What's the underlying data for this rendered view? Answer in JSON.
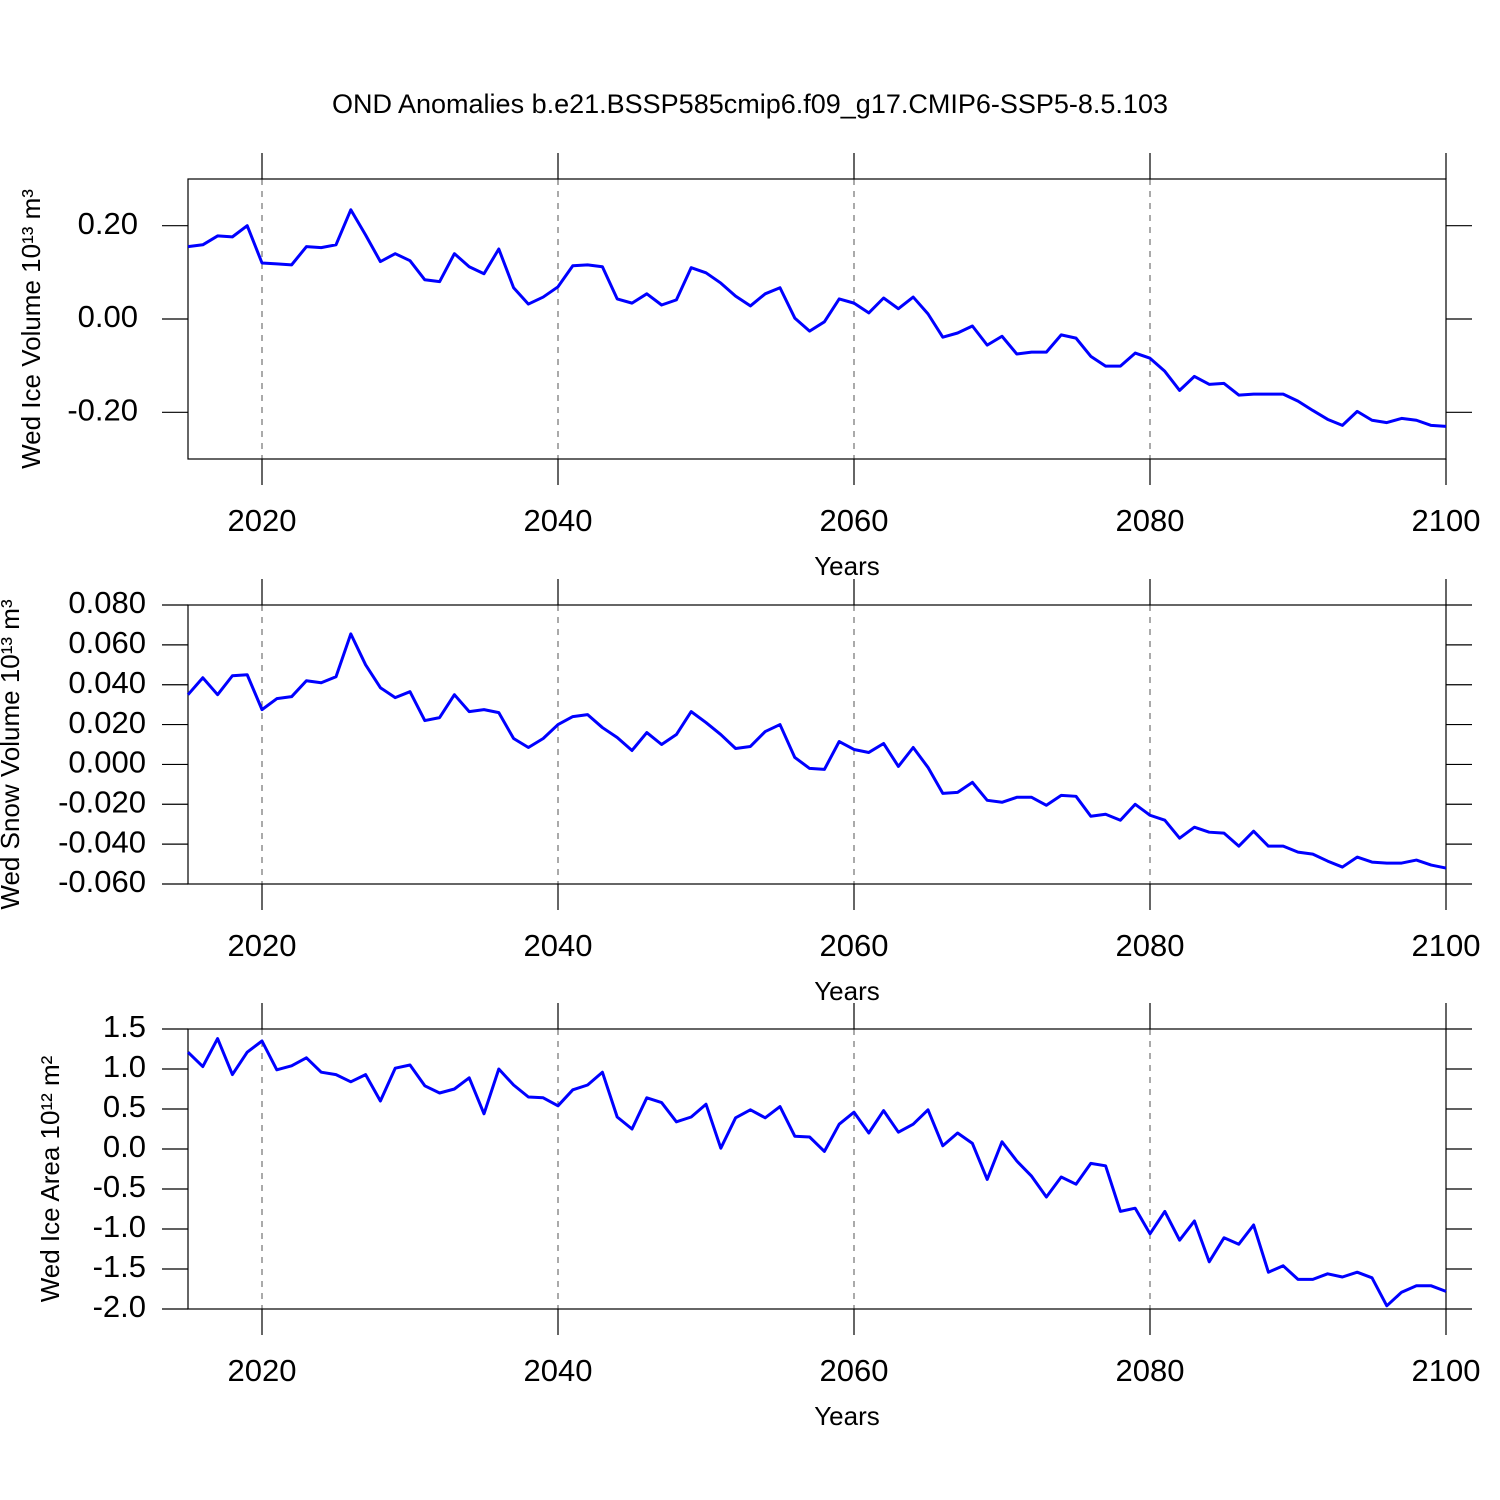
{
  "title": "OND Anomalies b.e21.BSSP585cmip6.f09_g17.CMIP6-SSP5-8.5.103",
  "chart_data": [
    {
      "type": "line",
      "ylabel": "Wed Ice Volume 10¹³ m³",
      "xlabel": "Years",
      "color": "#0000ff",
      "grid": true,
      "xlim": [
        2015,
        2100
      ],
      "xticks": [
        2020,
        2040,
        2060,
        2080,
        2100
      ],
      "ylim": [
        -0.3,
        0.3
      ],
      "yticks": [
        {
          "value": -0.2,
          "label": "-0.20"
        },
        {
          "value": 0,
          "label": "0.00"
        },
        {
          "value": 0.2,
          "label": "0.20"
        }
      ],
      "x": [
        2015,
        2016,
        2017,
        2018,
        2019,
        2020,
        2021,
        2022,
        2023,
        2024,
        2025,
        2026,
        2027,
        2028,
        2029,
        2030,
        2031,
        2032,
        2033,
        2034,
        2035,
        2036,
        2037,
        2038,
        2039,
        2040,
        2041,
        2042,
        2043,
        2044,
        2045,
        2046,
        2047,
        2048,
        2049,
        2050,
        2051,
        2052,
        2053,
        2054,
        2055,
        2056,
        2057,
        2058,
        2059,
        2060,
        2061,
        2062,
        2063,
        2064,
        2065,
        2066,
        2067,
        2068,
        2069,
        2070,
        2071,
        2072,
        2073,
        2074,
        2075,
        2076,
        2077,
        2078,
        2079,
        2080,
        2081,
        2082,
        2083,
        2084,
        2085,
        2086,
        2087,
        2088,
        2089,
        2090,
        2091,
        2092,
        2093,
        2094,
        2095,
        2096,
        2097,
        2098,
        2099,
        2100
      ],
      "values": [
        0.155,
        0.159,
        0.178,
        0.176,
        0.2,
        0.12,
        0.118,
        0.116,
        0.155,
        0.153,
        0.159,
        0.234,
        0.18,
        0.123,
        0.14,
        0.125,
        0.084,
        0.08,
        0.14,
        0.112,
        0.097,
        0.15,
        0.067,
        0.032,
        0.047,
        0.069,
        0.114,
        0.116,
        0.112,
        0.043,
        0.034,
        0.054,
        0.03,
        0.041,
        0.11,
        0.099,
        0.077,
        0.049,
        0.028,
        0.054,
        0.067,
        0.002,
        -0.026,
        -0.006,
        0.043,
        0.034,
        0.013,
        0.045,
        0.022,
        0.047,
        0.011,
        -0.039,
        -0.03,
        -0.015,
        -0.056,
        -0.037,
        -0.075,
        -0.071,
        -0.071,
        -0.034,
        -0.041,
        -0.08,
        -0.101,
        -0.101,
        -0.073,
        -0.084,
        -0.112,
        -0.153,
        -0.123,
        -0.14,
        -0.138,
        -0.163,
        -0.161,
        -0.161,
        -0.161,
        -0.176,
        -0.196,
        -0.215,
        -0.228,
        -0.198,
        -0.217,
        -0.222,
        -0.213,
        -0.217,
        -0.228,
        -0.23
      ]
    },
    {
      "type": "line",
      "ylabel": "Wed Snow Volume 10¹³ m³",
      "xlabel": "Years",
      "color": "#0000ff",
      "grid": true,
      "xlim": [
        2015,
        2100
      ],
      "xticks": [
        2020,
        2040,
        2060,
        2080,
        2100
      ],
      "ylim": [
        -0.06,
        0.08
      ],
      "yticks": [
        {
          "value": -0.06,
          "label": "-0.060"
        },
        {
          "value": -0.04,
          "label": "-0.040"
        },
        {
          "value": -0.02,
          "label": "-0.020"
        },
        {
          "value": 0,
          "label": "0.000"
        },
        {
          "value": 0.02,
          "label": "0.020"
        },
        {
          "value": 0.04,
          "label": "0.040"
        },
        {
          "value": 0.06,
          "label": "0.060"
        },
        {
          "value": 0.08,
          "label": "0.080"
        }
      ],
      "x": [
        2015,
        2016,
        2017,
        2018,
        2019,
        2020,
        2021,
        2022,
        2023,
        2024,
        2025,
        2026,
        2027,
        2028,
        2029,
        2030,
        2031,
        2032,
        2033,
        2034,
        2035,
        2036,
        2037,
        2038,
        2039,
        2040,
        2041,
        2042,
        2043,
        2044,
        2045,
        2046,
        2047,
        2048,
        2049,
        2050,
        2051,
        2052,
        2053,
        2054,
        2055,
        2056,
        2057,
        2058,
        2059,
        2060,
        2061,
        2062,
        2063,
        2064,
        2065,
        2066,
        2067,
        2068,
        2069,
        2070,
        2071,
        2072,
        2073,
        2074,
        2075,
        2076,
        2077,
        2078,
        2079,
        2080,
        2081,
        2082,
        2083,
        2084,
        2085,
        2086,
        2087,
        2088,
        2089,
        2090,
        2091,
        2092,
        2093,
        2094,
        2095,
        2096,
        2097,
        2098,
        2099,
        2100
      ],
      "values": [
        0.035,
        0.0435,
        0.035,
        0.0445,
        0.045,
        0.0275,
        0.033,
        0.034,
        0.042,
        0.041,
        0.044,
        0.0655,
        0.05,
        0.0385,
        0.0335,
        0.0365,
        0.022,
        0.0235,
        0.035,
        0.0265,
        0.0275,
        0.026,
        0.013,
        0.0085,
        0.013,
        0.02,
        0.024,
        0.025,
        0.0185,
        0.0135,
        0.007,
        0.016,
        0.01,
        0.015,
        0.0265,
        0.021,
        0.015,
        0.008,
        0.009,
        0.0165,
        0.02,
        0.0035,
        -0.002,
        -0.0025,
        0.0115,
        0.0075,
        0.006,
        0.0105,
        -0.001,
        0.0085,
        -0.0015,
        -0.0145,
        -0.014,
        -0.009,
        -0.018,
        -0.019,
        -0.0165,
        -0.0165,
        -0.0205,
        -0.0155,
        -0.016,
        -0.026,
        -0.025,
        -0.028,
        -0.02,
        -0.0255,
        -0.028,
        -0.037,
        -0.0315,
        -0.034,
        -0.0345,
        -0.041,
        -0.0335,
        -0.041,
        -0.041,
        -0.044,
        -0.045,
        -0.0485,
        -0.0515,
        -0.0465,
        -0.049,
        -0.0495,
        -0.0495,
        -0.048,
        -0.0505,
        -0.052
      ]
    },
    {
      "type": "line",
      "ylabel": "Wed Ice Area 10¹² m²",
      "xlabel": "Years",
      "color": "#0000ff",
      "grid": true,
      "xlim": [
        2015,
        2100
      ],
      "xticks": [
        2020,
        2040,
        2060,
        2080,
        2100
      ],
      "ylim": [
        -2,
        1.5
      ],
      "yticks": [
        {
          "value": -2,
          "label": "-2.0"
        },
        -1.5,
        {
          "value": -1,
          "label": "-1.0"
        },
        -0.5,
        {
          "value": 0,
          "label": "0.0"
        },
        0.5,
        {
          "value": 1,
          "label": "1.0"
        },
        1.5
      ],
      "x": [
        2015,
        2016,
        2017,
        2018,
        2019,
        2020,
        2021,
        2022,
        2023,
        2024,
        2025,
        2026,
        2027,
        2028,
        2029,
        2030,
        2031,
        2032,
        2033,
        2034,
        2035,
        2036,
        2037,
        2038,
        2039,
        2040,
        2041,
        2042,
        2043,
        2044,
        2045,
        2046,
        2047,
        2048,
        2049,
        2050,
        2051,
        2052,
        2053,
        2054,
        2055,
        2056,
        2057,
        2058,
        2059,
        2060,
        2061,
        2062,
        2063,
        2064,
        2065,
        2066,
        2067,
        2068,
        2069,
        2070,
        2071,
        2072,
        2073,
        2074,
        2075,
        2076,
        2077,
        2078,
        2079,
        2080,
        2081,
        2082,
        2083,
        2084,
        2085,
        2086,
        2087,
        2088,
        2089,
        2090,
        2091,
        2092,
        2093,
        2094,
        2095,
        2096,
        2097,
        2098,
        2099,
        2100
      ],
      "values": [
        1.21,
        1.03,
        1.38,
        0.93,
        1.21,
        1.35,
        0.99,
        1.04,
        1.14,
        0.96,
        0.93,
        0.84,
        0.93,
        0.6,
        1.01,
        1.05,
        0.79,
        0.7,
        0.75,
        0.89,
        0.44,
        1.0,
        0.8,
        0.65,
        0.64,
        0.54,
        0.74,
        0.8,
        0.96,
        0.4,
        0.25,
        0.64,
        0.58,
        0.34,
        0.4,
        0.56,
        0.01,
        0.39,
        0.49,
        0.39,
        0.53,
        0.16,
        0.15,
        -0.03,
        0.31,
        0.46,
        0.2,
        0.48,
        0.21,
        0.31,
        0.49,
        0.04,
        0.2,
        0.07,
        -0.38,
        0.09,
        -0.15,
        -0.34,
        -0.6,
        -0.35,
        -0.44,
        -0.18,
        -0.21,
        -0.78,
        -0.74,
        -1.06,
        -0.78,
        -1.14,
        -0.9,
        -1.41,
        -1.11,
        -1.19,
        -0.95,
        -1.54,
        -1.46,
        -1.63,
        -1.63,
        -1.56,
        -1.6,
        -1.54,
        -1.61,
        -1.96,
        -1.79,
        -1.71,
        -1.71,
        -1.78
      ]
    }
  ]
}
